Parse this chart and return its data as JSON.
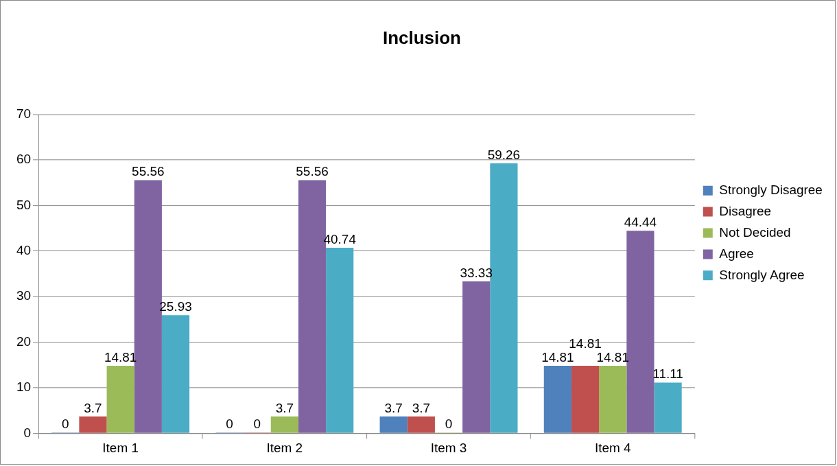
{
  "chart_data": {
    "type": "bar",
    "title": "Inclusion",
    "categories": [
      "Item 1",
      "Item 2",
      "Item 3",
      "Item 4"
    ],
    "series": [
      {
        "name": "Strongly Disagree",
        "color": "#4f81bd",
        "values": [
          0,
          0,
          3.7,
          14.81
        ]
      },
      {
        "name": "Disagree",
        "color": "#c0504d",
        "values": [
          3.7,
          0,
          3.7,
          14.81
        ]
      },
      {
        "name": "Not Decided",
        "color": "#9bbb59",
        "values": [
          14.81,
          3.7,
          0,
          14.81
        ]
      },
      {
        "name": "Agree",
        "color": "#8064a2",
        "values": [
          55.56,
          55.56,
          33.33,
          44.44
        ]
      },
      {
        "name": "Strongly Agree",
        "color": "#4bacc6",
        "values": [
          25.93,
          40.74,
          59.26,
          11.11
        ]
      }
    ],
    "ylim": [
      0,
      70
    ],
    "yticks": [
      0,
      10,
      20,
      30,
      40,
      50,
      60,
      70
    ],
    "grid": "y",
    "legend": "right",
    "data_labels": true
  }
}
